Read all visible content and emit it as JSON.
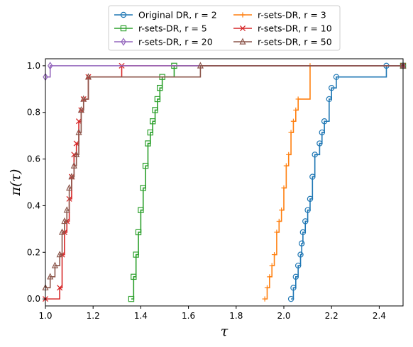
{
  "chart_data": {
    "type": "line",
    "xlabel": "τ",
    "ylabel": "π(τ)",
    "xlim": [
      1.0,
      2.5
    ],
    "ylim": [
      -0.03,
      1.03
    ],
    "xticks": [
      1.0,
      1.2,
      1.4,
      1.6,
      1.8,
      2.0,
      2.2,
      2.4
    ],
    "xtick_labels": [
      "1.0",
      "1.2",
      "1.4",
      "1.6",
      "1.8",
      "2.0",
      "2.2",
      "2.4"
    ],
    "yticks": [
      0.0,
      0.2,
      0.4,
      0.6,
      0.8,
      1.0
    ],
    "ytick_labels": [
      "0.0",
      "0.2",
      "0.4",
      "0.6",
      "0.8",
      "1.0"
    ],
    "legend_position": "top-center",
    "series": [
      {
        "name": "Original DR, r = 2",
        "color": "#1f77b4",
        "marker": "circle",
        "x": [
          2.03,
          2.04,
          2.05,
          2.06,
          2.07,
          2.075,
          2.08,
          2.09,
          2.1,
          2.11,
          2.12,
          2.13,
          2.15,
          2.16,
          2.17,
          2.19,
          2.2,
          2.22,
          2.43,
          2.5
        ],
        "y": [
          0.0,
          0.048,
          0.095,
          0.143,
          0.19,
          0.238,
          0.286,
          0.333,
          0.381,
          0.429,
          0.524,
          0.619,
          0.667,
          0.714,
          0.762,
          0.857,
          0.905,
          0.952,
          1.0,
          1.0
        ]
      },
      {
        "name": "r-sets-DR, r = 3",
        "color": "#ff7f0e",
        "marker": "plus",
        "x": [
          1.92,
          1.93,
          1.94,
          1.95,
          1.96,
          1.97,
          1.98,
          1.99,
          2.0,
          2.01,
          2.02,
          2.03,
          2.04,
          2.05,
          2.06,
          2.11,
          2.5
        ],
        "y": [
          0.0,
          0.048,
          0.095,
          0.143,
          0.19,
          0.286,
          0.333,
          0.381,
          0.476,
          0.571,
          0.619,
          0.714,
          0.762,
          0.81,
          0.857,
          1.0,
          1.0
        ]
      },
      {
        "name": "r-sets-DR, r = 5",
        "color": "#2ca02c",
        "marker": "square",
        "x": [
          1.36,
          1.37,
          1.38,
          1.39,
          1.4,
          1.41,
          1.42,
          1.43,
          1.44,
          1.45,
          1.46,
          1.47,
          1.48,
          1.49,
          1.54,
          2.5
        ],
        "y": [
          0.0,
          0.095,
          0.19,
          0.286,
          0.381,
          0.476,
          0.571,
          0.667,
          0.714,
          0.762,
          0.81,
          0.857,
          0.905,
          0.952,
          1.0,
          1.0
        ]
      },
      {
        "name": "r-sets-DR, r = 10",
        "color": "#d62728",
        "marker": "x",
        "x": [
          1.0,
          1.06,
          1.07,
          1.08,
          1.09,
          1.1,
          1.11,
          1.12,
          1.13,
          1.14,
          1.15,
          1.16,
          1.18,
          1.32,
          2.5
        ],
        "y": [
          0.0,
          0.048,
          0.19,
          0.286,
          0.333,
          0.429,
          0.524,
          0.619,
          0.667,
          0.762,
          0.81,
          0.857,
          0.952,
          1.0,
          1.0
        ]
      },
      {
        "name": "r-sets-DR, r = 20",
        "color": "#9467bd",
        "marker": "diamond",
        "x": [
          1.0,
          1.02,
          2.5
        ],
        "y": [
          0.952,
          1.0,
          1.0
        ]
      },
      {
        "name": "r-sets-DR, r = 50",
        "color": "#8c564b",
        "marker": "triangle",
        "x": [
          1.0,
          1.02,
          1.04,
          1.06,
          1.07,
          1.08,
          1.09,
          1.1,
          1.11,
          1.12,
          1.13,
          1.14,
          1.15,
          1.16,
          1.18,
          1.65,
          2.5
        ],
        "y": [
          0.048,
          0.095,
          0.143,
          0.19,
          0.286,
          0.333,
          0.381,
          0.476,
          0.524,
          0.571,
          0.619,
          0.714,
          0.81,
          0.857,
          0.952,
          1.0,
          1.0
        ]
      }
    ]
  }
}
